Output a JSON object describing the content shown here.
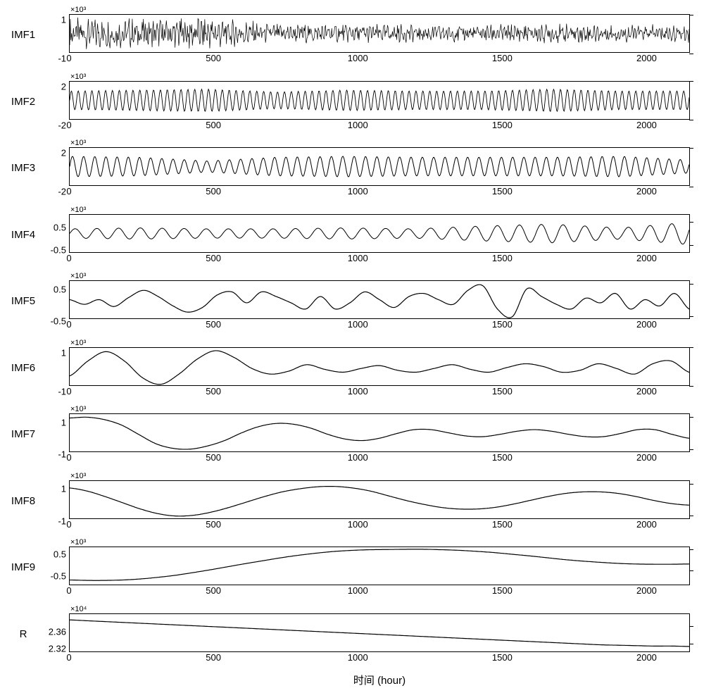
{
  "xaxis": {
    "label": "时间 (hour)",
    "ticks": [
      0,
      500,
      1000,
      1500,
      2000
    ],
    "min": 0,
    "max": 2150
  },
  "colors": {
    "line": "#000000",
    "border": "#000000",
    "background": "#ffffff",
    "text": "#000000"
  },
  "typography": {
    "ylabel_fontsize": 15,
    "tick_fontsize": 13,
    "exponent_fontsize": 11,
    "xlabel_fontsize": 15
  },
  "panels": [
    {
      "name": "IMF1",
      "exponent": "×10³",
      "ylim": [
        -1.0,
        1.0
      ],
      "yticks": [
        -1.0,
        1.0
      ],
      "signal": {
        "type": "noise-high-freq",
        "amp_envelope": [
          0.9,
          0.9,
          0.95,
          0.55,
          0.55,
          0.5,
          0.5,
          0.55,
          0.5,
          0.5
        ],
        "freq": 180
      },
      "line_width": 0.7
    },
    {
      "name": "IMF2",
      "exponent": "×10³",
      "ylim": [
        -2.0,
        2.0
      ],
      "yticks": [
        -2.0,
        2.0
      ],
      "signal": {
        "type": "oscillation",
        "amp_envelope": [
          0.5,
          0.55,
          0.6,
          0.45,
          0.55,
          0.5,
          0.5,
          0.6,
          0.5,
          0.5
        ],
        "freq": 90
      },
      "line_width": 0.9
    },
    {
      "name": "IMF3",
      "exponent": "×10³",
      "ylim": [
        -2.0,
        2.0
      ],
      "yticks": [
        -2.0,
        2.0
      ],
      "signal": {
        "type": "oscillation",
        "amp_envelope": [
          0.55,
          0.5,
          0.3,
          0.5,
          0.55,
          0.5,
          0.5,
          0.5,
          0.55,
          0.35
        ],
        "freq": 55
      },
      "line_width": 1.0
    },
    {
      "name": "IMF4",
      "exponent": "×10³",
      "ylim": [
        -0.85,
        0.85
      ],
      "yticks": [
        -0.5,
        0.5
      ],
      "signal": {
        "type": "oscillation",
        "amp_envelope": [
          0.25,
          0.3,
          0.25,
          0.25,
          0.3,
          0.25,
          0.4,
          0.5,
          0.3,
          0.6
        ],
        "freq": 28
      },
      "line_width": 1.0
    },
    {
      "name": "IMF5",
      "exponent": "×10³",
      "ylim": [
        -0.6,
        0.6
      ],
      "yticks": [
        -0.5,
        0.5
      ],
      "signal": {
        "type": "custom-points",
        "points": [
          0,
          -0.15,
          0,
          -0.22,
          0.07,
          0.3,
          0.1,
          -0.2,
          -0.4,
          -0.25,
          0.15,
          0.25,
          -0.1,
          0.25,
          0.1,
          -0.1,
          -0.3,
          0.1,
          -0.3,
          -0.1,
          0.25,
          0,
          -0.25,
          0.1,
          0.2,
          0,
          -0.15,
          0.3,
          0.45,
          -0.3,
          -0.55,
          0.35,
          0.1,
          -0.15,
          -0.3,
          0.05,
          -0.1,
          0.2,
          -0.3,
          0,
          -0.2,
          0.2,
          -0.3
        ]
      },
      "line_width": 1.2
    },
    {
      "name": "IMF6",
      "exponent": "×10³",
      "ylim": [
        -1.0,
        1.0
      ],
      "yticks": [
        -1.0,
        1.0
      ],
      "signal": {
        "type": "custom-points",
        "points": [
          -0.5,
          0.3,
          0.8,
          0.3,
          -0.6,
          -0.95,
          -0.4,
          0.4,
          0.85,
          0.5,
          -0.1,
          -0.4,
          -0.25,
          0.1,
          -0.15,
          -0.3,
          -0.1,
          0.05,
          -0.2,
          -0.3,
          -0.1,
          0.1,
          -0.15,
          -0.3,
          -0.05,
          0.15,
          0,
          -0.3,
          -0.2,
          0.15,
          -0.1,
          -0.4,
          0.15,
          0.3,
          -0.3
        ]
      },
      "line_width": 1.2
    },
    {
      "name": "IMF7",
      "exponent": "×10³",
      "ylim": [
        -1.2,
        1.2
      ],
      "yticks": [
        -1.0,
        1.0
      ],
      "signal": {
        "type": "custom-points",
        "points": [
          0.95,
          1.0,
          0.85,
          0.5,
          -0.1,
          -0.7,
          -1.0,
          -1.05,
          -0.85,
          -0.5,
          0,
          0.4,
          0.6,
          0.55,
          0.3,
          -0.1,
          -0.4,
          -0.5,
          -0.35,
          -0.05,
          0.2,
          0.2,
          0,
          -0.2,
          -0.25,
          -0.1,
          0.1,
          0.2,
          0.1,
          -0.1,
          -0.25,
          -0.25,
          -0.05,
          0.2,
          0.2,
          -0.1,
          -0.35
        ]
      },
      "line_width": 1.2
    },
    {
      "name": "IMF8",
      "exponent": "×10³",
      "ylim": [
        -1.2,
        1.2
      ],
      "yticks": [
        -1.0,
        1.0
      ],
      "signal": {
        "type": "custom-points",
        "points": [
          0.75,
          0.55,
          0.2,
          -0.2,
          -0.6,
          -0.9,
          -1.05,
          -1.0,
          -0.8,
          -0.5,
          -0.15,
          0.2,
          0.5,
          0.7,
          0.83,
          0.85,
          0.75,
          0.55,
          0.25,
          -0.05,
          -0.3,
          -0.5,
          -0.6,
          -0.6,
          -0.5,
          -0.3,
          -0.05,
          0.2,
          0.4,
          0.5,
          0.5,
          0.4,
          0.2,
          -0.05,
          -0.25,
          -0.35
        ]
      },
      "line_width": 1.2
    },
    {
      "name": "IMF9",
      "exponent": "×10³",
      "ylim": [
        -1.2,
        0.6
      ],
      "yticks": [
        -0.5,
        0.5
      ],
      "signal": {
        "type": "custom-points",
        "points": [
          -0.98,
          -1.0,
          -1.0,
          -0.98,
          -0.93,
          -0.85,
          -0.75,
          -0.62,
          -0.48,
          -0.33,
          -0.18,
          -0.04,
          0.1,
          0.22,
          0.32,
          0.4,
          0.45,
          0.48,
          0.49,
          0.5,
          0.5,
          0.48,
          0.45,
          0.4,
          0.34,
          0.26,
          0.18,
          0.09,
          0,
          -0.07,
          -0.13,
          -0.18,
          -0.21,
          -0.22,
          -0.22,
          -0.21
        ]
      },
      "line_width": 1.2
    },
    {
      "name": "R",
      "exponent": "×10⁴",
      "ylim": [
        2.3,
        2.39
      ],
      "yticks": [
        2.32,
        2.36
      ],
      "signal": {
        "type": "custom-points",
        "points": [
          2.376,
          2.374,
          2.372,
          2.37,
          2.368,
          2.366,
          2.364,
          2.362,
          2.36,
          2.358,
          2.356,
          2.354,
          2.352,
          2.35,
          2.348,
          2.346,
          2.344,
          2.342,
          2.34,
          2.338,
          2.336,
          2.334,
          2.332,
          2.33,
          2.328,
          2.326,
          2.324,
          2.322,
          2.32,
          2.318,
          2.316,
          2.315,
          2.314,
          2.313,
          2.313,
          2.312
        ]
      },
      "line_width": 1.2
    }
  ]
}
